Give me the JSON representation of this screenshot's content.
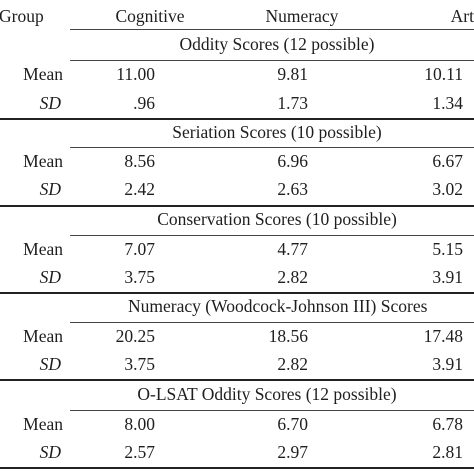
{
  "header": {
    "group": "Group",
    "cognitive": "Cognitive",
    "numeracy": "Numeracy",
    "art": "Art"
  },
  "sections": [
    {
      "title": "Oddity Scores (12 possible)",
      "mean_label": "Mean",
      "sd_label": "SD",
      "mean": {
        "cognitive": "11.00",
        "numeracy": "9.81",
        "art": "10.11"
      },
      "sd": {
        "cognitive": ".96",
        "numeracy": "1.73",
        "art": "1.34"
      }
    },
    {
      "title": "Seriation Scores (10 possible)",
      "mean_label": "Mean",
      "sd_label": "SD",
      "mean": {
        "cognitive": "8.56",
        "numeracy": "6.96",
        "art": "6.67"
      },
      "sd": {
        "cognitive": "2.42",
        "numeracy": "2.63",
        "art": "3.02"
      }
    },
    {
      "title": "Conservation Scores (10 possible)",
      "mean_label": "Mean",
      "sd_label": "SD",
      "mean": {
        "cognitive": "7.07",
        "numeracy": "4.77",
        "art": "5.15"
      },
      "sd": {
        "cognitive": "3.75",
        "numeracy": "2.82",
        "art": "3.91"
      }
    },
    {
      "title": "Numeracy (Woodcock-Johnson III) Scores",
      "mean_label": "Mean",
      "sd_label": "SD",
      "mean": {
        "cognitive": "20.25",
        "numeracy": "18.56",
        "art": "17.48"
      },
      "sd": {
        "cognitive": "3.75",
        "numeracy": "2.82",
        "art": "3.91"
      }
    },
    {
      "title": "O-LSAT Oddity Scores (12 possible)",
      "mean_label": "Mean",
      "sd_label": "SD",
      "mean": {
        "cognitive": "8.00",
        "numeracy": "6.70",
        "art": "6.78"
      },
      "sd": {
        "cognitive": "2.57",
        "numeracy": "2.97",
        "art": "2.81"
      }
    }
  ]
}
